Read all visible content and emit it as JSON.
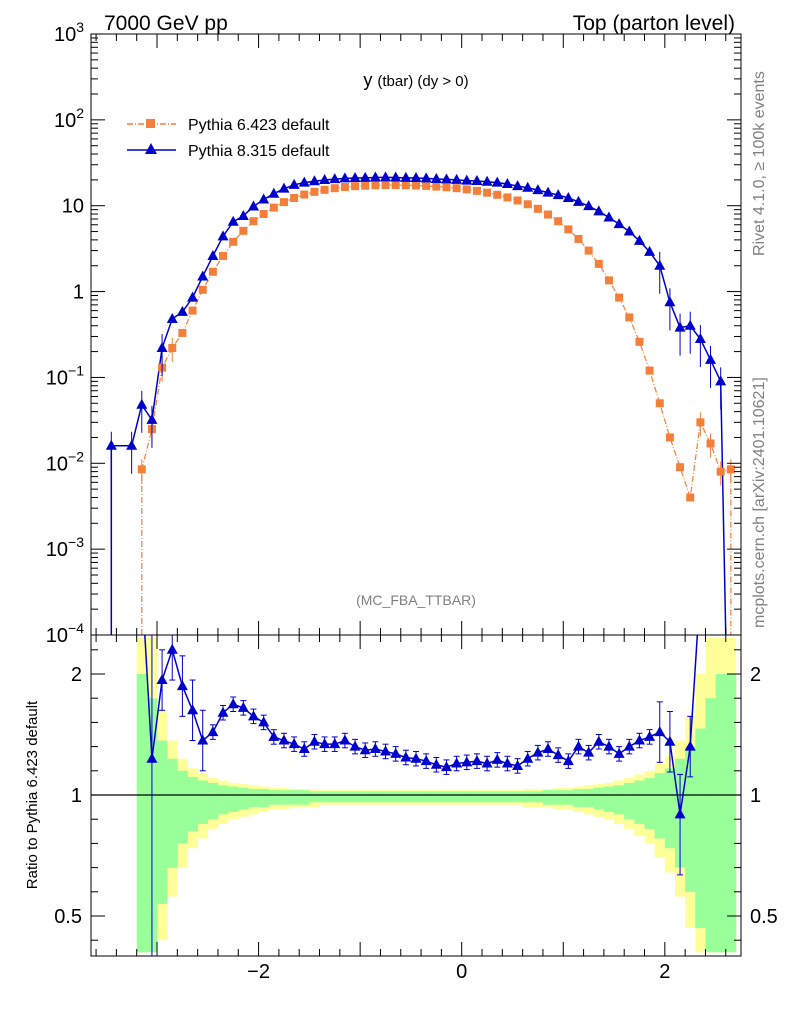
{
  "header": {
    "left": "7000 GeV pp",
    "right": "Top (parton level)"
  },
  "side_text": {
    "rivet": "Rivet 4.1.0, ≥ 100k events",
    "mcplots": "mcplots.cern.ch [arXiv:2401.10621]"
  },
  "analysis_tag": "(MC_FBA_TTBAR)",
  "colors": {
    "pythia6": "#f47f3a",
    "pythia8": "#0000cc",
    "band_green": "#99ff99",
    "band_yellow": "#ffff99"
  },
  "chart_data": [
    {
      "type": "line",
      "title_main": "y",
      "title_rest": "(tbar) (dy > 0)",
      "xlabel": "",
      "ylabel": "",
      "yscale": "log",
      "ylim": [
        0.0001,
        1000
      ],
      "xlim": [
        -3.65,
        2.75
      ],
      "yticks": [
        {
          "value": 1000,
          "label": "10",
          "exp": "3"
        },
        {
          "value": 100,
          "label": "10",
          "exp": "2"
        },
        {
          "value": 10,
          "label": "10",
          "exp": ""
        },
        {
          "value": 1,
          "label": "1",
          "exp": ""
        },
        {
          "value": 0.1,
          "label": "10",
          "exp": "−1"
        },
        {
          "value": 0.01,
          "label": "10",
          "exp": "−2"
        },
        {
          "value": 0.001,
          "label": "10",
          "exp": "−3"
        },
        {
          "value": 0.0001,
          "label": "10",
          "exp": "−4"
        }
      ],
      "legend": [
        "Pythia 6.423 default",
        "Pythia 8.315 default"
      ],
      "legend_position": "top-left",
      "series": [
        {
          "name": "Pythia 6.423 default",
          "marker": "square",
          "x": [
            -3.15,
            -3.05,
            -2.95,
            -2.85,
            -2.75,
            -2.65,
            -2.55,
            -2.45,
            -2.35,
            -2.25,
            -2.15,
            -2.05,
            -1.95,
            -1.85,
            -1.75,
            -1.65,
            -1.55,
            -1.45,
            -1.35,
            -1.25,
            -1.15,
            -1.05,
            -0.95,
            -0.85,
            -0.75,
            -0.65,
            -0.55,
            -0.45,
            -0.35,
            -0.25,
            -0.15,
            -0.05,
            0.05,
            0.15,
            0.25,
            0.35,
            0.45,
            0.55,
            0.65,
            0.75,
            0.85,
            0.95,
            1.05,
            1.15,
            1.25,
            1.35,
            1.45,
            1.55,
            1.65,
            1.75,
            1.85,
            1.95,
            2.05,
            2.15,
            2.25,
            2.35,
            2.45,
            2.55,
            2.65
          ],
          "values": [
            0.0085,
            0.025,
            0.13,
            0.22,
            0.33,
            0.6,
            1.05,
            1.7,
            2.6,
            3.8,
            5.1,
            6.6,
            8.0,
            9.5,
            11.0,
            12.3,
            13.5,
            14.5,
            15.3,
            16.0,
            16.5,
            16.9,
            17.1,
            17.3,
            17.4,
            17.4,
            17.3,
            17.2,
            17.0,
            16.7,
            16.4,
            16.0,
            15.5,
            14.9,
            14.2,
            13.4,
            12.5,
            11.5,
            10.4,
            9.2,
            7.9,
            6.6,
            5.3,
            4.1,
            3.0,
            2.1,
            1.35,
            0.85,
            0.5,
            0.26,
            0.12,
            0.05,
            0.02,
            0.009,
            0.004,
            0.03,
            0.017,
            0.008,
            0.0085
          ]
        },
        {
          "name": "Pythia 8.315 default",
          "marker": "triangle",
          "x": [
            -3.45,
            -3.25,
            -3.15,
            -3.05,
            -2.95,
            -2.85,
            -2.75,
            -2.65,
            -2.55,
            -2.45,
            -2.35,
            -2.25,
            -2.15,
            -2.05,
            -1.95,
            -1.85,
            -1.75,
            -1.65,
            -1.55,
            -1.45,
            -1.35,
            -1.25,
            -1.15,
            -1.05,
            -0.95,
            -0.85,
            -0.75,
            -0.65,
            -0.55,
            -0.45,
            -0.35,
            -0.25,
            -0.15,
            -0.05,
            0.05,
            0.15,
            0.25,
            0.35,
            0.45,
            0.55,
            0.65,
            0.75,
            0.85,
            0.95,
            1.05,
            1.15,
            1.25,
            1.35,
            1.45,
            1.55,
            1.65,
            1.75,
            1.85,
            1.95,
            2.05,
            2.15,
            2.25,
            2.35,
            2.45,
            2.55
          ],
          "values": [
            0.016,
            0.016,
            0.048,
            0.032,
            0.22,
            0.48,
            0.58,
            0.85,
            1.5,
            2.6,
            4.4,
            6.5,
            7.6,
            9.8,
            11.8,
            13.8,
            15.8,
            17.5,
            18.6,
            19.3,
            19.9,
            20.4,
            20.8,
            21.0,
            21.1,
            21.3,
            21.4,
            21.3,
            21.1,
            21.0,
            20.8,
            20.5,
            20.3,
            20.0,
            19.6,
            19.4,
            19.0,
            18.6,
            17.9,
            16.9,
            16.2,
            15.2,
            14.2,
            13.3,
            12.3,
            11.1,
            9.9,
            8.6,
            7.3,
            6.1,
            5.0,
            3.9,
            2.9,
            2.0,
            0.75,
            0.38,
            0.4,
            0.28,
            0.16,
            0.09
          ]
        }
      ]
    },
    {
      "type": "line",
      "ylabel": "Ratio to Pythia 6.423 default",
      "xlim": [
        -3.65,
        2.75
      ],
      "ylim": [
        0.35,
        2.3
      ],
      "yticks": [
        0.5,
        1,
        2
      ],
      "xticks": [
        -2,
        0,
        2
      ],
      "bands": {
        "x": [
          -3.15,
          -3.05,
          -2.95,
          -2.85,
          -2.75,
          -2.65,
          -2.55,
          -2.45,
          -2.35,
          -2.25,
          -2.15,
          -2.05,
          -1.95,
          -1.85,
          -1.75,
          -1.65,
          -1.55,
          -1.45,
          -1.35,
          -1.25,
          -1.15,
          -1.05,
          -0.95,
          -0.85,
          -0.75,
          -0.65,
          -0.55,
          -0.45,
          -0.35,
          -0.25,
          -0.15,
          -0.05,
          0.05,
          0.15,
          0.25,
          0.35,
          0.45,
          0.55,
          0.65,
          0.75,
          0.85,
          0.95,
          1.05,
          1.15,
          1.25,
          1.35,
          1.45,
          1.55,
          1.65,
          1.75,
          1.85,
          1.95,
          2.05,
          2.15,
          2.25,
          2.35,
          2.45,
          2.55,
          2.65
        ],
        "green_up": [
          2.0,
          1.8,
          1.45,
          1.3,
          1.2,
          1.15,
          1.12,
          1.1,
          1.08,
          1.07,
          1.06,
          1.05,
          1.05,
          1.04,
          1.04,
          1.04,
          1.04,
          1.03,
          1.03,
          1.03,
          1.03,
          1.03,
          1.03,
          1.03,
          1.03,
          1.03,
          1.03,
          1.03,
          1.03,
          1.03,
          1.03,
          1.03,
          1.03,
          1.03,
          1.03,
          1.03,
          1.03,
          1.03,
          1.03,
          1.03,
          1.04,
          1.04,
          1.04,
          1.05,
          1.05,
          1.06,
          1.07,
          1.08,
          1.1,
          1.12,
          1.14,
          1.18,
          1.22,
          1.3,
          1.4,
          1.55,
          1.8,
          2.0,
          2.0
        ],
        "green_dn": [
          0.35,
          0.35,
          0.55,
          0.7,
          0.8,
          0.85,
          0.88,
          0.9,
          0.92,
          0.93,
          0.94,
          0.95,
          0.95,
          0.96,
          0.96,
          0.96,
          0.96,
          0.97,
          0.97,
          0.97,
          0.97,
          0.97,
          0.97,
          0.97,
          0.97,
          0.97,
          0.97,
          0.97,
          0.97,
          0.97,
          0.97,
          0.97,
          0.97,
          0.97,
          0.97,
          0.97,
          0.97,
          0.97,
          0.97,
          0.97,
          0.96,
          0.96,
          0.96,
          0.95,
          0.95,
          0.94,
          0.93,
          0.92,
          0.9,
          0.88,
          0.86,
          0.82,
          0.78,
          0.7,
          0.6,
          0.45,
          0.35,
          0.35,
          0.35
        ],
        "yellow_up": [
          2.3,
          2.3,
          1.7,
          1.45,
          1.3,
          1.22,
          1.18,
          1.14,
          1.12,
          1.1,
          1.09,
          1.08,
          1.07,
          1.06,
          1.06,
          1.05,
          1.05,
          1.05,
          1.04,
          1.04,
          1.04,
          1.04,
          1.04,
          1.04,
          1.04,
          1.04,
          1.04,
          1.04,
          1.04,
          1.04,
          1.04,
          1.04,
          1.04,
          1.04,
          1.04,
          1.04,
          1.04,
          1.04,
          1.05,
          1.05,
          1.05,
          1.06,
          1.06,
          1.07,
          1.08,
          1.09,
          1.1,
          1.12,
          1.14,
          1.17,
          1.2,
          1.26,
          1.32,
          1.45,
          1.65,
          2.0,
          2.3,
          2.3,
          2.3
        ],
        "yellow_dn": [
          0.35,
          0.35,
          0.4,
          0.58,
          0.7,
          0.78,
          0.82,
          0.86,
          0.88,
          0.9,
          0.91,
          0.92,
          0.93,
          0.94,
          0.94,
          0.95,
          0.95,
          0.95,
          0.96,
          0.96,
          0.96,
          0.96,
          0.96,
          0.96,
          0.96,
          0.96,
          0.96,
          0.96,
          0.96,
          0.96,
          0.96,
          0.96,
          0.96,
          0.96,
          0.96,
          0.96,
          0.96,
          0.96,
          0.95,
          0.95,
          0.95,
          0.94,
          0.94,
          0.93,
          0.92,
          0.91,
          0.9,
          0.88,
          0.86,
          0.83,
          0.8,
          0.74,
          0.68,
          0.58,
          0.45,
          0.35,
          0.35,
          0.35,
          0.35
        ]
      },
      "series": [
        {
          "name": "Pythia 8.315 default / Pythia 6.423 default",
          "x": [
            -3.05,
            -2.95,
            -2.85,
            -2.75,
            -2.65,
            -2.55,
            -2.45,
            -2.35,
            -2.25,
            -2.15,
            -2.05,
            -1.95,
            -1.85,
            -1.75,
            -1.65,
            -1.55,
            -1.45,
            -1.35,
            -1.25,
            -1.15,
            -1.05,
            -0.95,
            -0.85,
            -0.75,
            -0.65,
            -0.55,
            -0.45,
            -0.35,
            -0.25,
            -0.15,
            -0.05,
            0.05,
            0.15,
            0.25,
            0.35,
            0.45,
            0.55,
            0.65,
            0.75,
            0.85,
            0.95,
            1.05,
            1.15,
            1.25,
            1.35,
            1.45,
            1.55,
            1.65,
            1.75,
            1.85,
            1.95,
            2.05,
            2.15,
            2.25
          ],
          "values": [
            1.3,
            1.95,
            2.2,
            1.9,
            1.7,
            1.45,
            1.52,
            1.68,
            1.75,
            1.72,
            1.65,
            1.6,
            1.48,
            1.45,
            1.42,
            1.38,
            1.44,
            1.42,
            1.42,
            1.45,
            1.4,
            1.37,
            1.38,
            1.36,
            1.34,
            1.31,
            1.3,
            1.28,
            1.25,
            1.23,
            1.26,
            1.27,
            1.28,
            1.26,
            1.29,
            1.26,
            1.24,
            1.3,
            1.35,
            1.38,
            1.33,
            1.28,
            1.4,
            1.35,
            1.44,
            1.4,
            1.34,
            1.4,
            1.45,
            1.48,
            1.52,
            1.44,
            0.92,
            1.4
          ]
        }
      ]
    }
  ]
}
